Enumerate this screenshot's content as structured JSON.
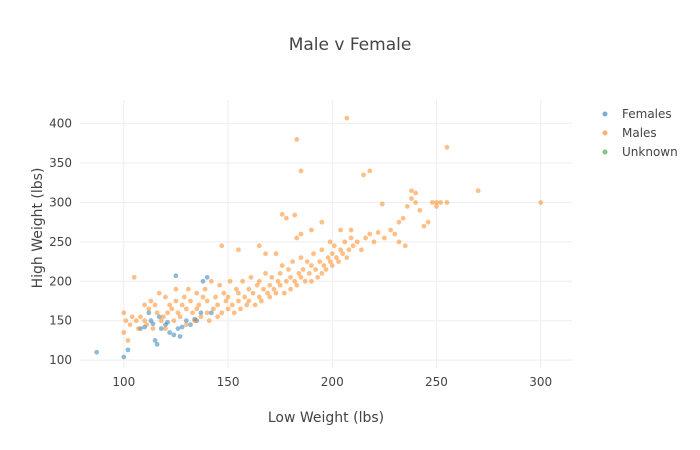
{
  "chart_data": {
    "type": "scatter",
    "title": "Male v Female",
    "xlabel": "Low Weight (lbs)",
    "ylabel": "High Weight (lbs)",
    "xlim": [
      79,
      315
    ],
    "ylim": [
      90,
      430
    ],
    "xticks": [
      100,
      150,
      200,
      250,
      300
    ],
    "yticks": [
      100,
      150,
      200,
      250,
      300,
      350,
      400
    ],
    "grid": true,
    "legend_position": "top-right",
    "series": [
      {
        "name": "Females",
        "color": "#1f77b4",
        "points": [
          [
            87,
            110
          ],
          [
            100,
            104
          ],
          [
            102,
            113
          ],
          [
            108,
            140
          ],
          [
            110,
            142
          ],
          [
            112,
            160
          ],
          [
            113,
            150
          ],
          [
            114,
            146
          ],
          [
            115,
            125
          ],
          [
            116,
            120
          ],
          [
            117,
            155
          ],
          [
            118,
            140
          ],
          [
            120,
            145
          ],
          [
            121,
            148
          ],
          [
            122,
            135
          ],
          [
            124,
            132
          ],
          [
            125,
            207
          ],
          [
            126,
            140
          ],
          [
            127,
            130
          ],
          [
            128,
            142
          ],
          [
            130,
            150
          ],
          [
            132,
            145
          ],
          [
            134,
            152
          ],
          [
            135,
            150
          ],
          [
            138,
            200
          ],
          [
            140,
            205
          ],
          [
            142,
            160
          ],
          [
            137,
            160
          ]
        ]
      },
      {
        "name": "Males",
        "color": "#ff7f0e",
        "points": [
          [
            100,
            135
          ],
          [
            100,
            160
          ],
          [
            101,
            150
          ],
          [
            102,
            125
          ],
          [
            103,
            145
          ],
          [
            104,
            155
          ],
          [
            105,
            205
          ],
          [
            106,
            150
          ],
          [
            107,
            140
          ],
          [
            108,
            155
          ],
          [
            110,
            150
          ],
          [
            110,
            170
          ],
          [
            111,
            145
          ],
          [
            112,
            165
          ],
          [
            113,
            175
          ],
          [
            114,
            140
          ],
          [
            115,
            170
          ],
          [
            116,
            160
          ],
          [
            117,
            185
          ],
          [
            118,
            150
          ],
          [
            119,
            155
          ],
          [
            120,
            140
          ],
          [
            120,
            180
          ],
          [
            121,
            160
          ],
          [
            122,
            170
          ],
          [
            123,
            165
          ],
          [
            124,
            150
          ],
          [
            125,
            175
          ],
          [
            125,
            190
          ],
          [
            126,
            160
          ],
          [
            127,
            155
          ],
          [
            128,
            170
          ],
          [
            129,
            180
          ],
          [
            130,
            145
          ],
          [
            130,
            165
          ],
          [
            131,
            190
          ],
          [
            132,
            175
          ],
          [
            133,
            160
          ],
          [
            134,
            150
          ],
          [
            135,
            185
          ],
          [
            135,
            165
          ],
          [
            136,
            170
          ],
          [
            137,
            155
          ],
          [
            138,
            180
          ],
          [
            139,
            190
          ],
          [
            140,
            160
          ],
          [
            140,
            175
          ],
          [
            141,
            150
          ],
          [
            142,
            200
          ],
          [
            143,
            165
          ],
          [
            144,
            180
          ],
          [
            145,
            155
          ],
          [
            145,
            170
          ],
          [
            146,
            195
          ],
          [
            147,
            160
          ],
          [
            148,
            185
          ],
          [
            149,
            175
          ],
          [
            150,
            165
          ],
          [
            150,
            180
          ],
          [
            151,
            200
          ],
          [
            152,
            170
          ],
          [
            153,
            160
          ],
          [
            154,
            190
          ],
          [
            155,
            175
          ],
          [
            155,
            185
          ],
          [
            156,
            165
          ],
          [
            157,
            200
          ],
          [
            158,
            180
          ],
          [
            159,
            170
          ],
          [
            160,
            175
          ],
          [
            160,
            190
          ],
          [
            161,
            205
          ],
          [
            162,
            185
          ],
          [
            163,
            170
          ],
          [
            164,
            195
          ],
          [
            165,
            180
          ],
          [
            165,
            200
          ],
          [
            166,
            175
          ],
          [
            167,
            190
          ],
          [
            168,
            210
          ],
          [
            169,
            185
          ],
          [
            170,
            180
          ],
          [
            170,
            195
          ],
          [
            171,
            205
          ],
          [
            172,
            190
          ],
          [
            173,
            185
          ],
          [
            174,
            200
          ],
          [
            175,
            210
          ],
          [
            175,
            195
          ],
          [
            176,
            220
          ],
          [
            177,
            185
          ],
          [
            178,
            200
          ],
          [
            179,
            215
          ],
          [
            180,
            190
          ],
          [
            180,
            205
          ],
          [
            181,
            225
          ],
          [
            182,
            200
          ],
          [
            183,
            195
          ],
          [
            184,
            210
          ],
          [
            185,
            230
          ],
          [
            185,
            205
          ],
          [
            186,
            215
          ],
          [
            187,
            200
          ],
          [
            188,
            225
          ],
          [
            189,
            210
          ],
          [
            190,
            220
          ],
          [
            190,
            200
          ],
          [
            191,
            235
          ],
          [
            192,
            215
          ],
          [
            193,
            205
          ],
          [
            194,
            225
          ],
          [
            195,
            210
          ],
          [
            195,
            240
          ],
          [
            196,
            220
          ],
          [
            197,
            215
          ],
          [
            198,
            230
          ],
          [
            199,
            225
          ],
          [
            200,
            220
          ],
          [
            200,
            235
          ],
          [
            201,
            245
          ],
          [
            202,
            230
          ],
          [
            203,
            225
          ],
          [
            204,
            240
          ],
          [
            205,
            235
          ],
          [
            206,
            250
          ],
          [
            207,
            230
          ],
          [
            208,
            240
          ],
          [
            209,
            255
          ],
          [
            210,
            245
          ],
          [
            212,
            250
          ],
          [
            214,
            240
          ],
          [
            216,
            255
          ],
          [
            218,
            260
          ],
          [
            220,
            250
          ],
          [
            222,
            262
          ],
          [
            225,
            255
          ],
          [
            228,
            265
          ],
          [
            230,
            260
          ],
          [
            232,
            275
          ],
          [
            234,
            280
          ],
          [
            236,
            295
          ],
          [
            238,
            305
          ],
          [
            240,
            300
          ],
          [
            242,
            290
          ],
          [
            244,
            270
          ],
          [
            246,
            275
          ],
          [
            248,
            300
          ],
          [
            250,
            295
          ],
          [
            232,
            250
          ],
          [
            235,
            245
          ],
          [
            240,
            312
          ],
          [
            255,
            370
          ],
          [
            270,
            315
          ],
          [
            300,
            300
          ],
          [
            183,
            380
          ],
          [
            185,
            340
          ],
          [
            207,
            407
          ],
          [
            215,
            335
          ],
          [
            218,
            340
          ],
          [
            250,
            300
          ],
          [
            255,
            300
          ],
          [
            224,
            298
          ],
          [
            238,
            315
          ],
          [
            252,
            300
          ],
          [
            173,
            235
          ],
          [
            176,
            285
          ],
          [
            178,
            280
          ],
          [
            182,
            284
          ],
          [
            185,
            260
          ],
          [
            190,
            265
          ],
          [
            199,
            250
          ],
          [
            204,
            265
          ],
          [
            209,
            265
          ],
          [
            147,
            245
          ],
          [
            155,
            240
          ],
          [
            165,
            245
          ],
          [
            168,
            235
          ],
          [
            195,
            275
          ],
          [
            183,
            255
          ]
        ]
      },
      {
        "name": "Unknown",
        "color": "#2ca02c",
        "points": []
      }
    ]
  }
}
